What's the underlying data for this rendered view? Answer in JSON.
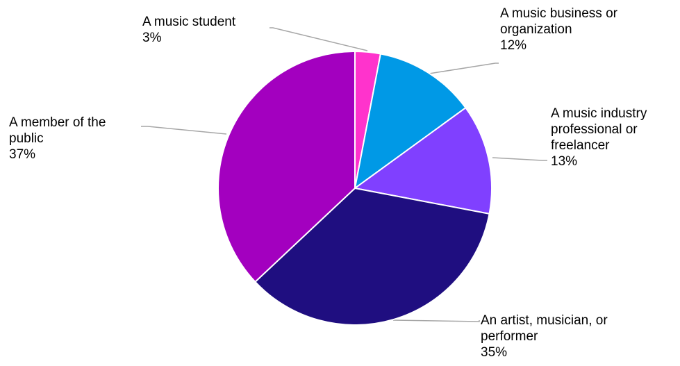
{
  "chart_data": {
    "type": "pie",
    "title": "",
    "legend": "none",
    "start_angle_deg": 0,
    "direction": "clockwise",
    "slices": [
      {
        "label_lines": [
          "A music student"
        ],
        "value_label": "3%",
        "value": 3,
        "color": "#ff33cc"
      },
      {
        "label_lines": [
          "A music business or",
          "organization"
        ],
        "value_label": "12%",
        "value": 12,
        "color": "#0099e6"
      },
      {
        "label_lines": [
          "A music industry",
          "professional or",
          "freelancer"
        ],
        "value_label": "13%",
        "value": 13,
        "color": "#8040ff"
      },
      {
        "label_lines": [
          "An artist, musician, or",
          "performer"
        ],
        "value_label": "35%",
        "value": 35,
        "color": "#1f0e80"
      },
      {
        "label_lines": [
          "A member of the",
          "public"
        ],
        "value_label": "37%",
        "value": 37,
        "color": "#a300bf"
      }
    ]
  }
}
